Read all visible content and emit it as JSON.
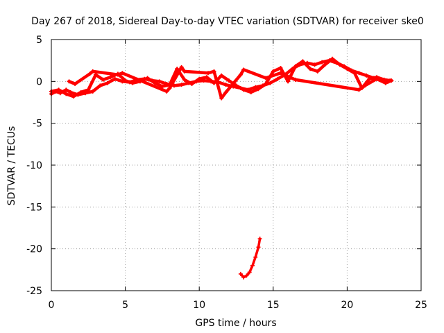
{
  "chart_data": {
    "type": "scatter",
    "title": "Day 267 of 2018, Sidereal Day-to-day VTEC variation (SDTVAR) for receiver ske0",
    "xlabel": "GPS time / hours",
    "ylabel": "SDTVAR / TECUs",
    "xlim": [
      0,
      25
    ],
    "ylim": [
      -25,
      5
    ],
    "xticks": [
      0,
      5,
      10,
      15,
      20,
      25
    ],
    "yticks": [
      -25,
      -20,
      -15,
      -10,
      -5,
      0,
      5
    ],
    "xtick_labels": [
      "0",
      "5",
      "10",
      "15",
      "20",
      "25"
    ],
    "ytick_labels": [
      "-25",
      "-20",
      "-15",
      "-10",
      "-5",
      "0",
      "5"
    ],
    "grid": true,
    "marker_color": "#ff0000",
    "series": [
      {
        "name": "main-trace-1",
        "x": [
          0.0,
          0.3,
          0.6,
          1.0,
          1.3,
          1.8,
          2.3,
          2.8,
          3.3,
          3.8,
          4.3,
          4.8,
          5.3,
          5.8,
          6.3,
          6.8,
          7.3,
          7.8,
          8.3,
          8.8,
          9.3,
          9.8,
          10.3,
          10.8,
          11.3,
          11.8,
          12.3,
          12.8,
          13.3,
          13.8,
          14.3,
          14.8,
          15.3,
          15.8,
          16.3,
          16.8,
          17.3,
          17.8,
          18.3,
          18.8,
          19.3,
          19.8,
          20.3,
          20.8,
          21.3,
          21.8,
          22.3,
          22.8
        ],
        "y": [
          -1.5,
          -1.2,
          -1.4,
          -1.0,
          -1.3,
          -1.6,
          -1.4,
          -1.2,
          -0.5,
          -0.2,
          0.3,
          0.0,
          -0.1,
          0.2,
          0.3,
          0.1,
          0.0,
          -0.3,
          -0.5,
          -0.4,
          -0.2,
          0.0,
          0.1,
          0.0,
          -0.1,
          -0.4,
          -0.6,
          -0.8,
          -1.0,
          -0.7,
          -0.5,
          -0.2,
          0.3,
          0.8,
          1.5,
          2.0,
          2.2,
          2.0,
          2.3,
          2.5,
          2.2,
          1.8,
          1.3,
          1.0,
          0.7,
          0.4,
          0.2,
          0.0
        ]
      },
      {
        "name": "main-trace-2",
        "x": [
          0.0,
          0.5,
          1.0,
          1.5,
          2.0,
          2.5,
          3.0,
          3.5,
          4.0,
          4.5,
          5.0,
          5.5,
          6.0,
          6.5,
          7.0,
          7.5,
          8.0,
          8.5,
          9.0,
          9.5,
          10.0,
          10.5,
          11.0,
          11.5,
          12.0,
          12.5,
          13.0,
          13.5,
          14.0,
          14.5,
          15.0,
          15.5,
          16.0,
          16.5,
          17.0,
          17.5,
          18.0,
          18.5,
          19.0,
          19.5,
          20.0,
          20.5,
          21.0,
          21.5,
          22.0,
          22.5,
          22.9
        ],
        "y": [
          -1.2,
          -1.0,
          -1.5,
          -1.8,
          -1.3,
          -1.0,
          0.8,
          0.2,
          0.5,
          0.9,
          0.1,
          -0.2,
          0.0,
          0.4,
          -0.2,
          -0.6,
          -0.4,
          1.5,
          0.2,
          -0.3,
          0.3,
          0.5,
          -0.2,
          0.7,
          0.1,
          -0.5,
          -1.0,
          -1.3,
          -0.9,
          -0.3,
          1.2,
          1.6,
          0.0,
          1.8,
          2.4,
          1.5,
          1.2,
          2.0,
          2.7,
          2.0,
          1.5,
          1.0,
          -0.8,
          0.3,
          0.5,
          0.2,
          0.1
        ]
      },
      {
        "name": "main-trace-3",
        "x": [
          1.2,
          1.6,
          2.6,
          2.8,
          4.5,
          4.8,
          7.8,
          8.0,
          8.8,
          9.0,
          10.6,
          11.0,
          11.5,
          11.8,
          12.8,
          13.0,
          14.5,
          15.5,
          16.5,
          20.8,
          21.2,
          22.0,
          22.6,
          23.0
        ],
        "y": [
          0.0,
          -0.3,
          0.9,
          1.2,
          0.8,
          1.0,
          -1.2,
          -0.8,
          1.7,
          1.2,
          1.0,
          1.2,
          -2.0,
          -1.3,
          0.8,
          1.4,
          0.4,
          1.0,
          0.2,
          -1.0,
          -0.5,
          0.3,
          -0.2,
          0.1
        ]
      },
      {
        "name": "outlier-trace",
        "x": [
          12.8,
          13.0,
          13.2,
          13.4,
          13.6,
          13.8,
          14.0,
          14.1
        ],
        "y": [
          -23.0,
          -23.4,
          -23.2,
          -22.8,
          -22.0,
          -21.0,
          -19.8,
          -18.8
        ]
      }
    ]
  }
}
